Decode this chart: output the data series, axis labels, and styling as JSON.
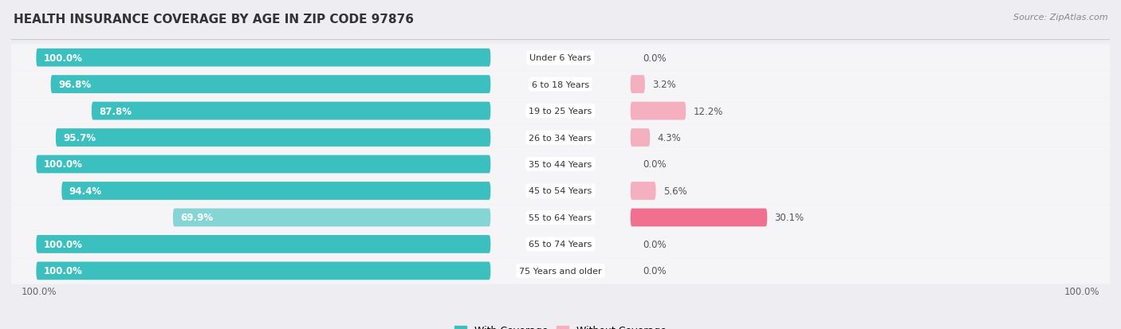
{
  "title": "HEALTH INSURANCE COVERAGE BY AGE IN ZIP CODE 97876",
  "source": "Source: ZipAtlas.com",
  "categories": [
    "Under 6 Years",
    "6 to 18 Years",
    "19 to 25 Years",
    "26 to 34 Years",
    "35 to 44 Years",
    "45 to 54 Years",
    "55 to 64 Years",
    "65 to 74 Years",
    "75 Years and older"
  ],
  "with_coverage": [
    100.0,
    96.8,
    87.8,
    95.7,
    100.0,
    94.4,
    69.9,
    100.0,
    100.0
  ],
  "without_coverage": [
    0.0,
    3.2,
    12.2,
    4.3,
    0.0,
    5.6,
    30.1,
    0.0,
    0.0
  ],
  "color_with": "#3bbfbf",
  "color_with_light": "#85d5d5",
  "color_without": "#f07090",
  "color_without_light": "#f5b0c0",
  "bg_color": "#ededf2",
  "row_bg_color": "#f5f5f8",
  "row_alt_color": "#eaeaef",
  "title_fontsize": 11,
  "label_fontsize": 8.5,
  "tick_fontsize": 8.5,
  "legend_fontsize": 9,
  "source_fontsize": 8
}
